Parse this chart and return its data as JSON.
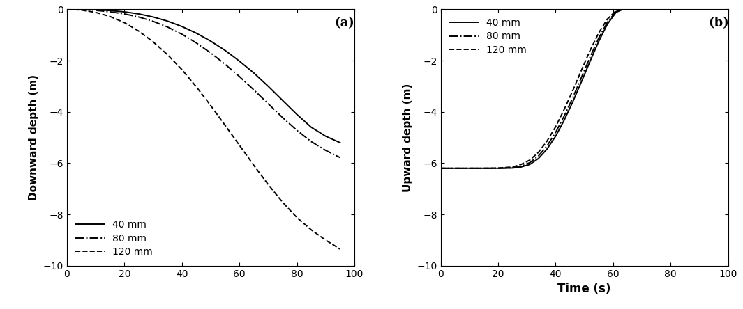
{
  "panel_a": {
    "label": "(a)",
    "ylabel": "Downward depth (m)",
    "xlim": [
      0,
      100
    ],
    "ylim": [
      -10,
      0
    ],
    "yticks": [
      0,
      -2.0,
      -4.0,
      -6.0,
      -8.0,
      -10.0
    ],
    "xticks": [
      0,
      20,
      40,
      60,
      80,
      100
    ],
    "legend_labels": [
      "40 mm",
      "80 mm",
      "120 mm"
    ],
    "legend_loc": "lower left",
    "curves": {
      "40mm": {
        "t": [
          0,
          5,
          10,
          15,
          20,
          25,
          30,
          35,
          40,
          45,
          50,
          55,
          60,
          65,
          70,
          75,
          80,
          85,
          90,
          95
        ],
        "y": [
          0.0,
          -0.005,
          -0.02,
          -0.05,
          -0.1,
          -0.18,
          -0.3,
          -0.46,
          -0.67,
          -0.93,
          -1.24,
          -1.6,
          -2.02,
          -2.48,
          -3.0,
          -3.55,
          -4.1,
          -4.6,
          -4.95,
          -5.2
        ]
      },
      "80mm": {
        "t": [
          0,
          5,
          10,
          15,
          20,
          25,
          30,
          35,
          40,
          45,
          50,
          55,
          60,
          65,
          70,
          75,
          80,
          85,
          90,
          95
        ],
        "y": [
          0.0,
          -0.01,
          -0.04,
          -0.1,
          -0.18,
          -0.3,
          -0.47,
          -0.69,
          -0.97,
          -1.31,
          -1.7,
          -2.14,
          -2.62,
          -3.14,
          -3.68,
          -4.22,
          -4.72,
          -5.16,
          -5.5,
          -5.78
        ]
      },
      "120mm": {
        "t": [
          0,
          5,
          10,
          15,
          20,
          25,
          30,
          35,
          40,
          45,
          50,
          55,
          60,
          65,
          70,
          75,
          80,
          85,
          90,
          95
        ],
        "y": [
          0.0,
          -0.03,
          -0.12,
          -0.28,
          -0.52,
          -0.85,
          -1.27,
          -1.77,
          -2.35,
          -3.02,
          -3.75,
          -4.52,
          -5.3,
          -6.08,
          -6.83,
          -7.52,
          -8.12,
          -8.6,
          -9.0,
          -9.35
        ]
      }
    }
  },
  "panel_b": {
    "label": "(b)",
    "ylabel": "Upward depth (m)",
    "xlabel": "Time (s)",
    "xlim": [
      0,
      100
    ],
    "ylim": [
      -10,
      0
    ],
    "yticks": [
      0,
      -2.0,
      -4.0,
      -6.0,
      -8.0,
      -10.0
    ],
    "xticks": [
      0,
      20,
      40,
      60,
      80,
      100
    ],
    "legend_labels": [
      "40 mm",
      "80 mm",
      "120 mm"
    ],
    "legend_loc": "upper left",
    "curves": {
      "40mm": {
        "t": [
          0,
          5,
          10,
          15,
          20,
          25,
          28,
          31,
          34,
          37,
          40,
          43,
          46,
          49,
          52,
          55,
          58,
          61,
          63,
          65
        ],
        "y": [
          -6.2,
          -6.2,
          -6.2,
          -6.2,
          -6.2,
          -6.19,
          -6.15,
          -6.05,
          -5.82,
          -5.45,
          -4.95,
          -4.32,
          -3.6,
          -2.82,
          -2.02,
          -1.25,
          -0.58,
          -0.12,
          -0.02,
          0.0
        ]
      },
      "80mm": {
        "t": [
          0,
          5,
          10,
          15,
          20,
          25,
          28,
          31,
          34,
          37,
          40,
          43,
          46,
          49,
          52,
          55,
          58,
          61,
          63,
          65
        ],
        "y": [
          -6.2,
          -6.2,
          -6.2,
          -6.2,
          -6.2,
          -6.18,
          -6.12,
          -5.98,
          -5.72,
          -5.33,
          -4.8,
          -4.16,
          -3.44,
          -2.65,
          -1.86,
          -1.12,
          -0.5,
          -0.09,
          -0.01,
          0.0
        ]
      },
      "120mm": {
        "t": [
          0,
          5,
          10,
          15,
          20,
          25,
          28,
          31,
          34,
          37,
          40,
          43,
          46,
          49,
          52,
          55,
          58,
          61,
          63,
          65
        ],
        "y": [
          -6.2,
          -6.2,
          -6.2,
          -6.2,
          -6.19,
          -6.15,
          -6.05,
          -5.88,
          -5.58,
          -5.14,
          -4.58,
          -3.9,
          -3.16,
          -2.37,
          -1.6,
          -0.92,
          -0.38,
          -0.06,
          -0.005,
          0.0
        ]
      }
    }
  },
  "line_color": "#000000",
  "linewidth": 1.4,
  "font_size": 10,
  "label_font_size": 11,
  "tick_font_size": 10
}
